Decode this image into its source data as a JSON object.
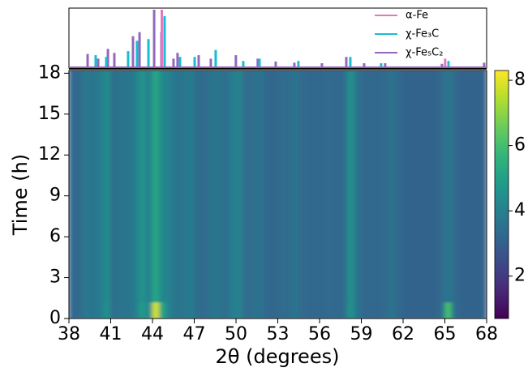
{
  "chart_data": [
    {
      "type": "stick",
      "xlim": [
        38,
        68
      ],
      "ylim": [
        0,
        100
      ],
      "legend": "upper right",
      "series": [
        {
          "name": "α-Fe",
          "color": "#e377c2",
          "x": [
            44.67,
            65.02
          ],
          "values": [
            100,
            15
          ]
        },
        {
          "name": "χ-Fe₃C",
          "color": "#17becf",
          "x": [
            39.92,
            40.68,
            42.25,
            42.89,
            43.71,
            44.87,
            45.98,
            47.03,
            48.54,
            50.52,
            51.69,
            54.48,
            58.21,
            60.42,
            65.26
          ],
          "values": [
            21,
            18,
            28,
            46,
            49,
            89,
            18,
            18,
            30,
            11,
            15,
            11,
            18,
            7,
            11
          ]
        },
        {
          "name": "χ-Fe₅C₂",
          "color": "#9467bd",
          "x": [
            39.34,
            40.1,
            40.8,
            41.26,
            42.6,
            43.07,
            44.12,
            44.64,
            45.51,
            45.8,
            47.32,
            48.19,
            49.99,
            51.56,
            52.85,
            54.19,
            56.17,
            57.92,
            59.2,
            60.71,
            64.79,
            67.82
          ],
          "values": [
            23,
            15,
            32,
            25,
            54,
            61,
            100,
            61,
            15,
            25,
            21,
            15,
            21,
            15,
            10,
            8,
            7,
            18,
            7,
            7,
            6,
            8
          ]
        }
      ]
    },
    {
      "type": "heatmap",
      "xlabel": "2θ (degrees)",
      "ylabel": "Time (h)",
      "xlim": [
        38,
        68
      ],
      "ylim": [
        0,
        18.2
      ],
      "xticks": [
        38,
        41,
        44,
        47,
        50,
        53,
        56,
        59,
        62,
        65,
        68
      ],
      "yticks": [
        0,
        3,
        6,
        9,
        12,
        15,
        18
      ],
      "x_bins": [
        38,
        38.5,
        39,
        39.5,
        40,
        40.5,
        41,
        41.5,
        42,
        42.5,
        43,
        43.5,
        44,
        44.5,
        45,
        45.5,
        46,
        46.5,
        47,
        47.5,
        48,
        48.5,
        49,
        49.5,
        50,
        50.5,
        51,
        51.5,
        52,
        52.5,
        53,
        53.5,
        54,
        54.5,
        55,
        55.5,
        56,
        56.5,
        57,
        57.5,
        58,
        58.5,
        59,
        59.5,
        60,
        60.5,
        61,
        61.5,
        62,
        62.5,
        63,
        63.5,
        64,
        64.5,
        65,
        65.5,
        66,
        66.5,
        67,
        67.5,
        68
      ],
      "y_bins": [
        0,
        1.2,
        18.2
      ],
      "z": [
        [
          3.2,
          3.3,
          3.8,
          3.6,
          3.9,
          4.5,
          3.4,
          3.7,
          3.6,
          3.9,
          4.8,
          4.3,
          7.8,
          5.0,
          4.0,
          3.6,
          3.7,
          3.9,
          3.4,
          3.3,
          3.6,
          3.7,
          3.4,
          3.9,
          4.1,
          3.3,
          3.5,
          3.6,
          3.2,
          3.2,
          3.3,
          3.4,
          3.6,
          3.3,
          3.2,
          3.2,
          3.2,
          3.3,
          3.2,
          3.4,
          4.6,
          3.6,
          3.2,
          3.2,
          3.2,
          3.3,
          3.6,
          3.2,
          3.1,
          3.1,
          3.1,
          3.1,
          3.1,
          3.4,
          6.0,
          3.4,
          3.1,
          3.1,
          3.1,
          3.1
        ],
        [
          3.2,
          3.3,
          3.8,
          3.6,
          3.9,
          4.4,
          3.4,
          3.7,
          3.6,
          3.9,
          4.6,
          4.1,
          5.2,
          4.3,
          4.0,
          3.6,
          3.7,
          3.9,
          3.4,
          3.3,
          3.6,
          3.7,
          3.4,
          3.9,
          4.1,
          3.3,
          3.5,
          3.6,
          3.2,
          3.2,
          3.3,
          3.4,
          3.6,
          3.3,
          3.2,
          3.2,
          3.2,
          3.3,
          3.2,
          3.4,
          4.5,
          3.6,
          3.2,
          3.2,
          3.2,
          3.3,
          3.6,
          3.2,
          3.1,
          3.1,
          3.1,
          3.1,
          3.1,
          3.3,
          3.7,
          3.3,
          3.1,
          3.1,
          3.1,
          3.1
        ]
      ],
      "colormap": "viridis",
      "clim": [
        0.7,
        8.3
      ],
      "colorbar_ticks": [
        2,
        4,
        6,
        8
      ]
    }
  ]
}
